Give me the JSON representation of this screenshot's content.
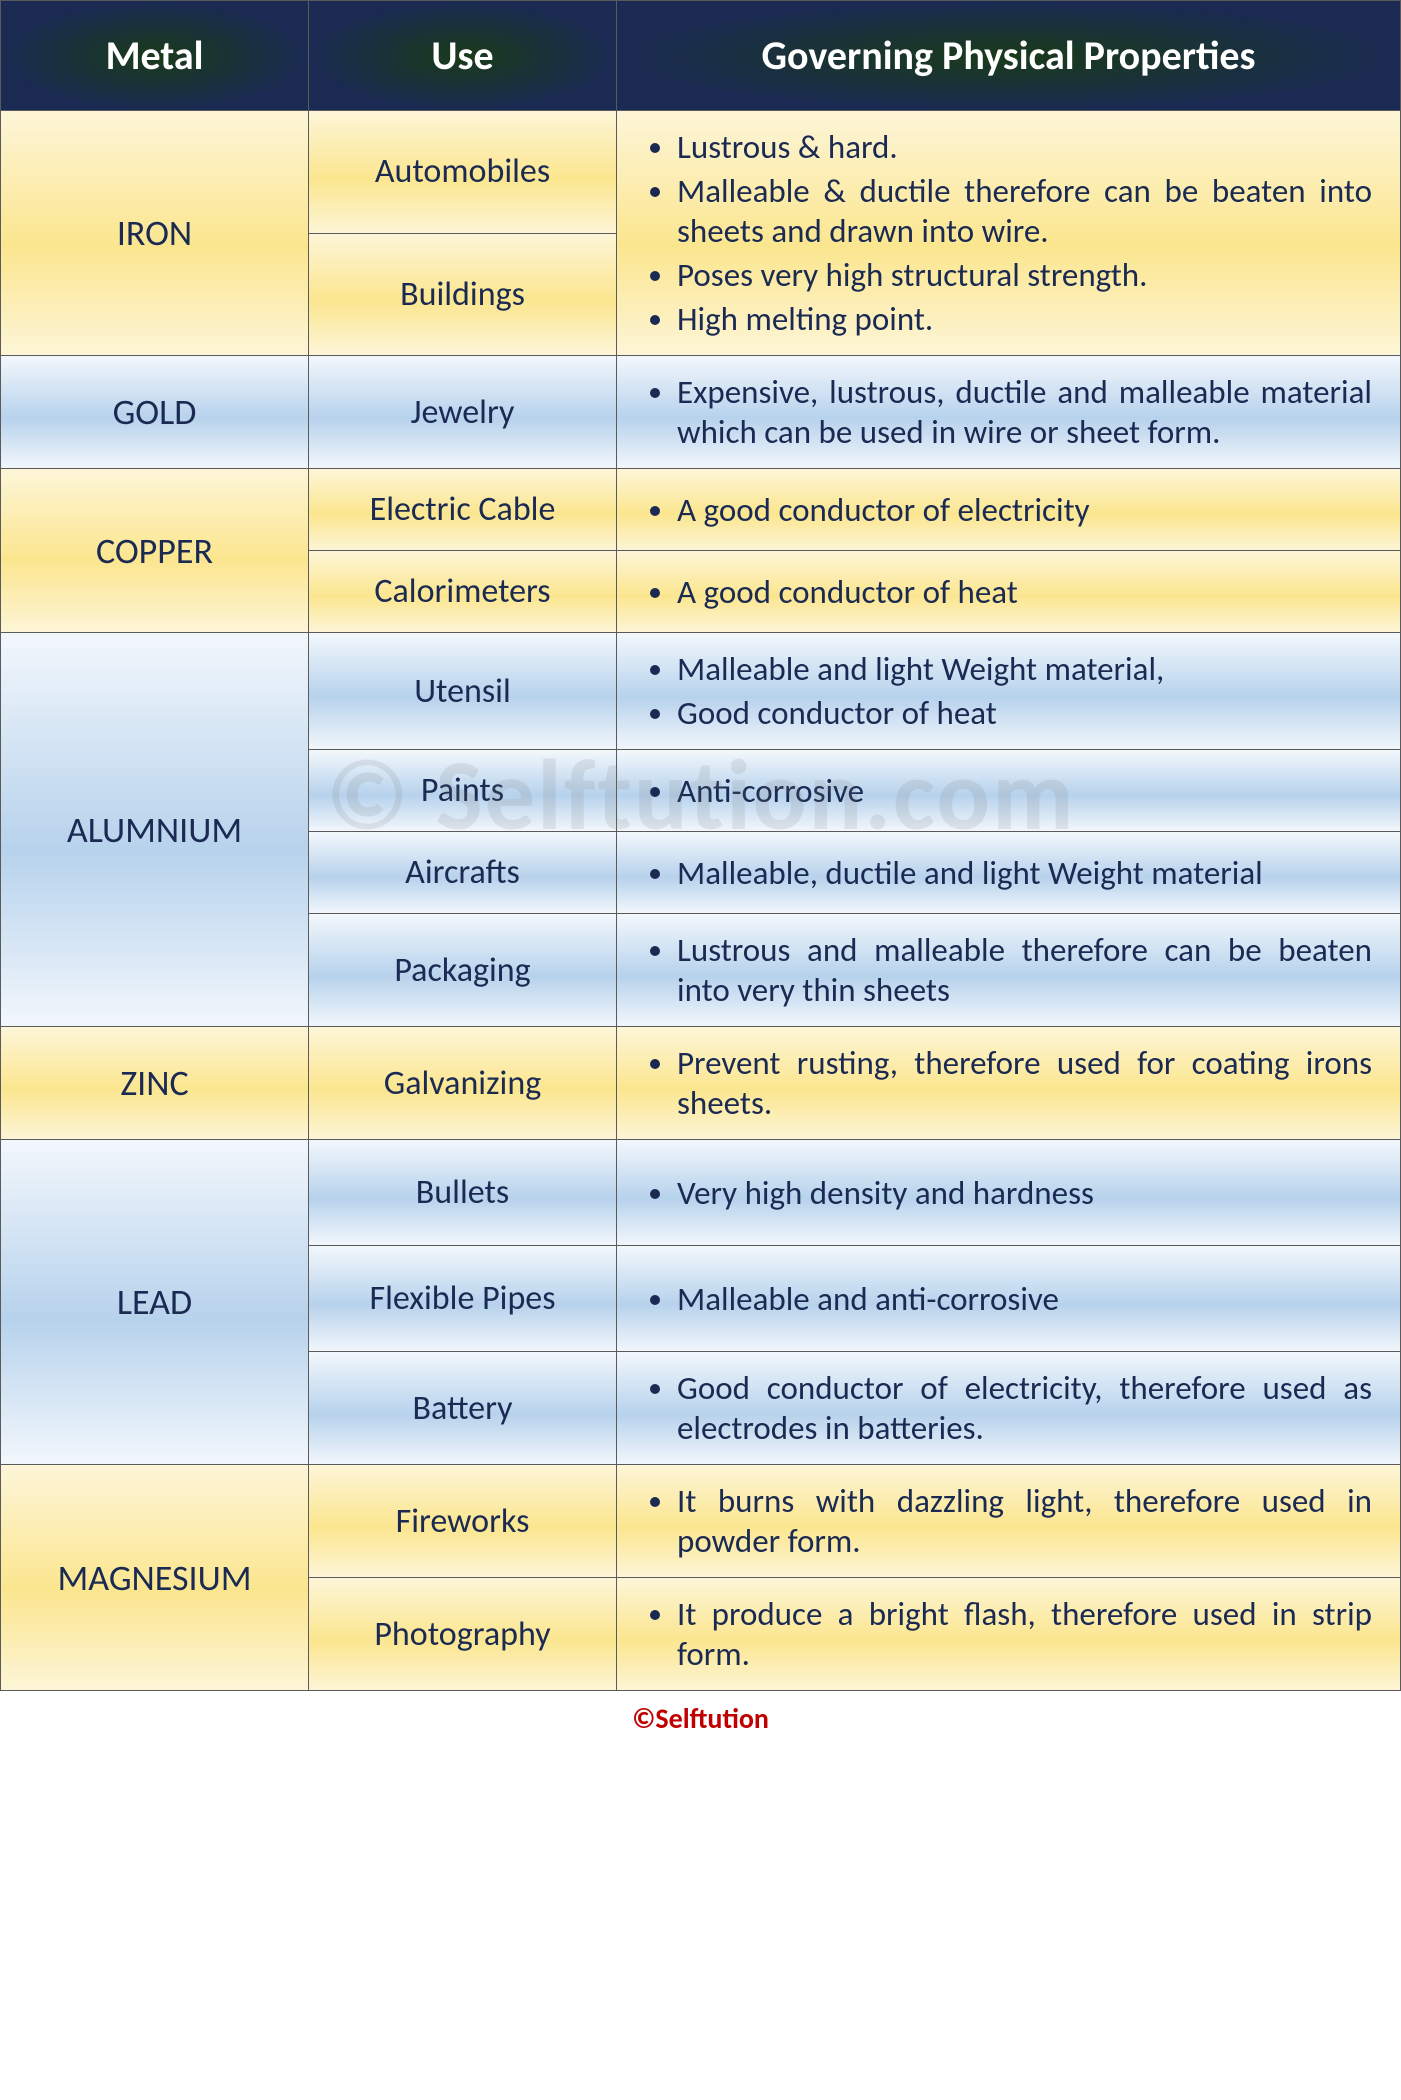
{
  "headers": {
    "metal": "Metal",
    "use": "Use",
    "properties": "Governing Physical Properties"
  },
  "colors": {
    "header_bg_inner": "#1a3a1a",
    "header_bg_outer": "#1a2a52",
    "header_text": "#ffffff",
    "text_color": "#1a2a52",
    "border_color": "#5a5a5a",
    "yellow_light": "#fdf5d7",
    "yellow_mid": "#fbe68f",
    "blue_light": "#f2f7fc",
    "blue_mid": "#b7d2ec",
    "footer_color": "#c00000"
  },
  "column_widths": {
    "metal_pct": 22,
    "use_pct": 22,
    "prop_pct": 56
  },
  "fonts": {
    "header_size": 40,
    "metal_size": 36,
    "use_size": 34,
    "prop_size": 33,
    "footer_size": 28,
    "family": "Calibri"
  },
  "rows": {
    "iron": {
      "metal": "IRON",
      "color_class": "grad-yellow",
      "uses": {
        "automobiles": "Automobiles",
        "buildings": "Buildings"
      },
      "properties": {
        "p1": "Lustrous & hard.",
        "p2": "Malleable & ductile therefore can be beaten into sheets and drawn into wire.",
        "p3": "Poses very high structural strength.",
        "p4": "High melting point."
      }
    },
    "gold": {
      "metal": "GOLD",
      "color_class": "grad-blue",
      "uses": {
        "jewelry": "Jewelry"
      },
      "properties": {
        "p1": "Expensive, lustrous, ductile and malleable material which can be used in wire or sheet form."
      }
    },
    "copper": {
      "metal": "COPPER",
      "color_class": "grad-yellow",
      "uses": {
        "cable": "Electric Cable",
        "calorimeters": "Calorimeters"
      },
      "properties": {
        "cable_p1": "A good conductor of electricity",
        "calorimeters_p1": "A good conductor of heat"
      }
    },
    "aluminium": {
      "metal": "ALUMNIUM",
      "color_class": "grad-blue",
      "uses": {
        "utensil": "Utensil",
        "paints": "Paints",
        "aircrafts": "Aircrafts",
        "packaging": "Packaging"
      },
      "properties": {
        "utensil_p1": "Malleable and light Weight material,",
        "utensil_p2": "Good conductor of heat",
        "paints_p1": "Anti-corrosive",
        "aircrafts_p1": "Malleable, ductile and light Weight material",
        "packaging_p1": "Lustrous and malleable therefore can be beaten into very thin sheets"
      }
    },
    "zinc": {
      "metal": "ZINC",
      "color_class": "grad-yellow",
      "uses": {
        "galvanizing": "Galvanizing"
      },
      "properties": {
        "p1": "Prevent rusting, therefore used for coating irons sheets."
      }
    },
    "lead": {
      "metal": "LEAD",
      "color_class": "grad-blue",
      "uses": {
        "bullets": "Bullets",
        "pipes": "Flexible Pipes",
        "battery": "Battery"
      },
      "properties": {
        "bullets_p1": "Very high density and hardness",
        "pipes_p1": "Malleable and anti-corrosive",
        "battery_p1": "Good conductor of electricity, therefore used as electrodes in batteries."
      }
    },
    "magnesium": {
      "metal": "MAGNESIUM",
      "color_class": "grad-yellow",
      "uses": {
        "fireworks": "Fireworks",
        "photography": "Photography"
      },
      "properties": {
        "fireworks_p1": "It burns with dazzling light, therefore used in powder form.",
        "photography_p1": "It produce a bright flash, therefore used in strip form."
      }
    }
  },
  "watermark": "© Selftution.com",
  "footer": "©Selftution"
}
